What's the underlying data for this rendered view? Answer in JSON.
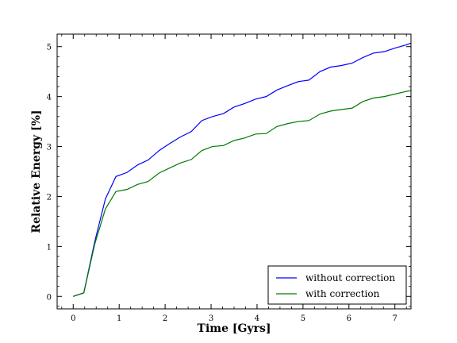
{
  "chart_data": {
    "type": "line",
    "xlabel": "Time [Gyrs]",
    "ylabel": "Relative Energy [%]",
    "xlim": [
      -0.35,
      7.35
    ],
    "ylim": [
      -0.25,
      5.25
    ],
    "xticks": [
      0,
      1,
      2,
      3,
      4,
      5,
      6,
      7
    ],
    "yticks": [
      0,
      1,
      2,
      3,
      4,
      5
    ],
    "grid": false,
    "legend": "lower-right",
    "series": [
      {
        "name": "without correction",
        "color": "#0000ff",
        "x": [
          0,
          0.23,
          0.47,
          0.7,
          0.93,
          1.17,
          1.4,
          1.63,
          1.87,
          2.1,
          2.33,
          2.57,
          2.8,
          3.03,
          3.27,
          3.5,
          3.73,
          3.97,
          4.2,
          4.43,
          4.67,
          4.9,
          5.13,
          5.37,
          5.6,
          5.83,
          6.07,
          6.3,
          6.53,
          6.77,
          7.0,
          7.23,
          7.35
        ],
        "y": [
          0.0,
          0.07,
          1.1,
          1.95,
          2.4,
          2.48,
          2.63,
          2.73,
          2.92,
          3.06,
          3.19,
          3.3,
          3.52,
          3.6,
          3.66,
          3.79,
          3.86,
          3.95,
          4.0,
          4.13,
          4.22,
          4.3,
          4.33,
          4.5,
          4.59,
          4.62,
          4.67,
          4.78,
          4.87,
          4.9,
          4.97,
          5.03,
          5.07
        ]
      },
      {
        "name": "with correction",
        "color": "#007a00",
        "x": [
          0,
          0.23,
          0.47,
          0.7,
          0.93,
          1.17,
          1.4,
          1.63,
          1.87,
          2.1,
          2.33,
          2.57,
          2.8,
          3.03,
          3.27,
          3.5,
          3.73,
          3.97,
          4.2,
          4.43,
          4.67,
          4.9,
          5.13,
          5.37,
          5.6,
          5.83,
          6.07,
          6.3,
          6.53,
          6.77,
          7.0,
          7.23,
          7.35
        ],
        "y": [
          0.0,
          0.07,
          1.05,
          1.75,
          2.1,
          2.14,
          2.24,
          2.3,
          2.47,
          2.57,
          2.67,
          2.74,
          2.92,
          3.0,
          3.02,
          3.12,
          3.17,
          3.25,
          3.26,
          3.4,
          3.46,
          3.5,
          3.52,
          3.65,
          3.71,
          3.74,
          3.77,
          3.9,
          3.97,
          4.0,
          4.05,
          4.1,
          4.12
        ]
      }
    ]
  }
}
